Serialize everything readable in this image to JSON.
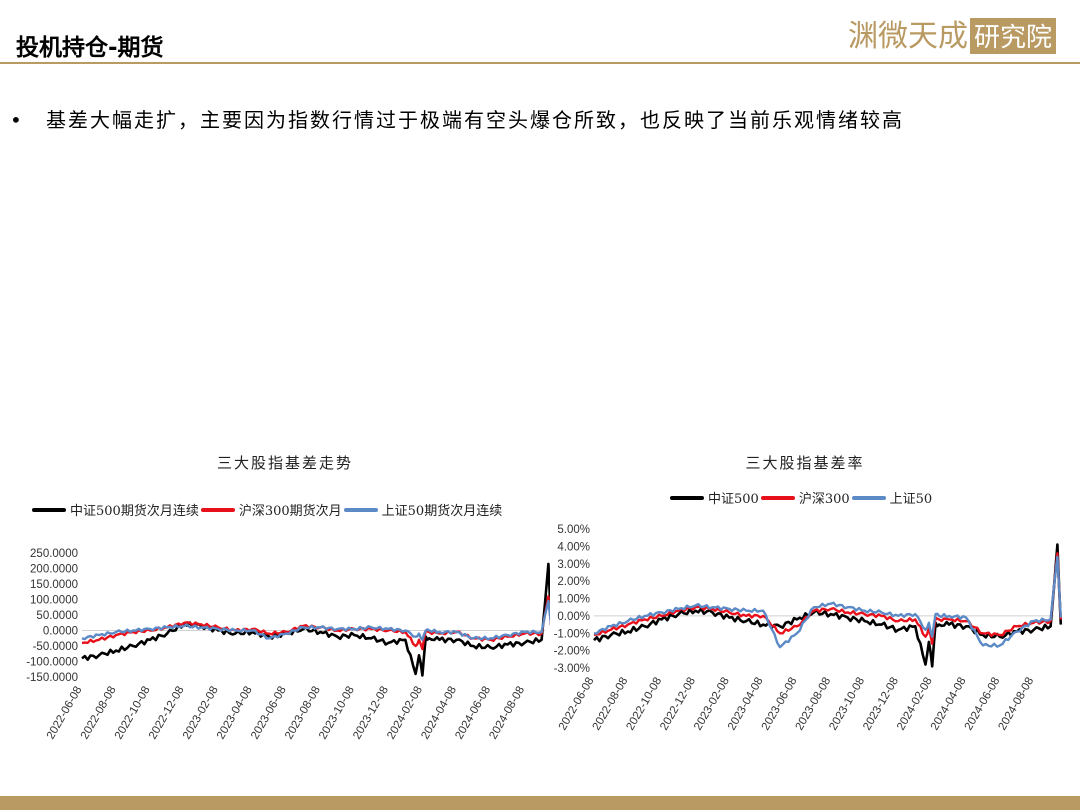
{
  "slide": {
    "title": "投机持仓-期货",
    "bullet": "基差大幅走扩，主要因为指数行情过于极端有空头爆仓所致，也反映了当前乐观情绪较高",
    "logo_text": "渊微天成",
    "logo_badge": "研究院"
  },
  "colors": {
    "accent_gold": "#b99a62",
    "zz500": "#000000",
    "hs300": "#e8101a",
    "sz50": "#5b8ac6"
  },
  "chart_data": [
    {
      "type": "line",
      "title": "三大股指基差走势",
      "legend": [
        "中证500期货次月连续",
        "沪深300期货次月",
        "上证50期货次月连续"
      ],
      "ylim": [
        -150,
        250
      ],
      "yticks": [
        "250.0000",
        "200.0000",
        "150.0000",
        "100.0000",
        "50.0000",
        "0.0000",
        "-50.0000",
        "-100.0000",
        "-150.0000"
      ],
      "xticks": [
        "2022-06-08",
        "2022-08-08",
        "2022-10-08",
        "2022-12-08",
        "2023-02-08",
        "2023-04-08",
        "2023-06-08",
        "2023-08-08",
        "2023-10-08",
        "2023-12-08",
        "2024-02-08",
        "2024-04-08",
        "2024-06-08",
        "2024-08-08"
      ],
      "series": [
        {
          "name": "中证500期货次月连续",
          "x": [
            0,
            0.5,
            1,
            1.5,
            2,
            2.5,
            3,
            3.5,
            4,
            4.5,
            5,
            5.5,
            6,
            6.5,
            7,
            7.5,
            8,
            8.5,
            9,
            9.5,
            9.8,
            9.9,
            10,
            10.1,
            10.2,
            10.5,
            11,
            11.5,
            12,
            12.5,
            13,
            13.5,
            13.7,
            13.8
          ],
          "values": [
            -90,
            -80,
            -65,
            -50,
            -30,
            -10,
            20,
            15,
            0,
            -10,
            -5,
            -20,
            -10,
            5,
            -5,
            -20,
            -15,
            -25,
            -40,
            -30,
            -140,
            -80,
            -145,
            -20,
            -25,
            -30,
            -30,
            -50,
            -55,
            -45,
            -40,
            -30,
            215,
            -20
          ]
        },
        {
          "name": "沪深300期货次月",
          "x": [
            0,
            0.5,
            1,
            1.5,
            2,
            2.5,
            3,
            3.5,
            4,
            4.5,
            5,
            5.5,
            6,
            6.5,
            7,
            7.5,
            8,
            8.5,
            9,
            9.5,
            9.8,
            9.9,
            10,
            10.1,
            10.2,
            10.5,
            11,
            11.5,
            12,
            12.5,
            13,
            13.5,
            13.7,
            13.8
          ],
          "values": [
            -40,
            -30,
            -15,
            -5,
            0,
            10,
            25,
            20,
            10,
            0,
            5,
            -10,
            -5,
            15,
            10,
            0,
            5,
            5,
            0,
            -5,
            -50,
            -30,
            -60,
            0,
            -5,
            -10,
            -5,
            -25,
            -30,
            -20,
            -10,
            -10,
            110,
            -5
          ]
        },
        {
          "name": "上证50期货次月连续",
          "x": [
            0,
            0.5,
            1,
            1.5,
            2,
            2.5,
            3,
            3.5,
            4,
            4.5,
            5,
            5.5,
            6,
            6.5,
            7,
            7.5,
            8,
            8.5,
            9,
            9.5,
            9.8,
            9.9,
            10,
            10.1,
            10.2,
            10.5,
            11,
            11.5,
            12,
            12.5,
            13,
            13.5,
            13.7,
            13.8
          ],
          "values": [
            -25,
            -15,
            -5,
            0,
            5,
            10,
            15,
            10,
            5,
            0,
            0,
            -25,
            -10,
            10,
            10,
            5,
            5,
            10,
            5,
            0,
            -20,
            -10,
            -30,
            0,
            0,
            -5,
            -5,
            -25,
            -25,
            -15,
            -5,
            -5,
            95,
            0
          ]
        }
      ]
    },
    {
      "type": "line",
      "title": "三大股指基差率",
      "legend": [
        "中证500",
        "沪深300",
        "上证50"
      ],
      "ylim": [
        -3,
        5
      ],
      "yticks": [
        "5.00%",
        "4.00%",
        "3.00%",
        "2.00%",
        "1.00%",
        "0.00%",
        "-1.00%",
        "-2.00%",
        "-3.00%"
      ],
      "xticks": [
        "2022-06-08",
        "2022-08-08",
        "2022-10-08",
        "2022-12-08",
        "2023-02-08",
        "2023-04-08",
        "2023-06-08",
        "2023-08-08",
        "2023-10-08",
        "2023-12-08",
        "2024-02-08",
        "2024-04-08",
        "2024-06-08",
        "2024-08-08"
      ],
      "series": [
        {
          "name": "中证500",
          "x": [
            0,
            0.5,
            1,
            1.5,
            2,
            2.5,
            3,
            3.5,
            4,
            4.5,
            5,
            5.5,
            6,
            6.5,
            7,
            7.5,
            8,
            8.5,
            9,
            9.5,
            9.8,
            9.9,
            10,
            10.1,
            10.2,
            10.5,
            11,
            11.5,
            12,
            12.5,
            13,
            13.5,
            13.7,
            13.8
          ],
          "values": [
            -1.4,
            -1.1,
            -0.9,
            -0.6,
            -0.2,
            0.1,
            0.3,
            0.2,
            -0.1,
            -0.3,
            -0.5,
            -0.6,
            -0.2,
            0.2,
            0.1,
            -0.1,
            -0.3,
            -0.5,
            -0.8,
            -0.6,
            -2.8,
            -1.5,
            -2.9,
            -0.4,
            -0.5,
            -0.5,
            -0.6,
            -1.1,
            -1.2,
            -0.9,
            -0.8,
            -0.6,
            4.1,
            -0.5
          ]
        },
        {
          "name": "沪深300",
          "x": [
            0,
            0.5,
            1,
            1.5,
            2,
            2.5,
            3,
            3.5,
            4,
            4.5,
            5,
            5.5,
            6,
            6.5,
            7,
            7.5,
            8,
            8.5,
            9,
            9.5,
            9.8,
            9.9,
            10,
            10.1,
            10.2,
            10.5,
            11,
            11.5,
            12,
            12.5,
            13,
            13.5,
            13.7,
            13.8
          ],
          "values": [
            -1.1,
            -0.8,
            -0.5,
            -0.2,
            0.0,
            0.3,
            0.5,
            0.4,
            0.2,
            0.0,
            0.0,
            -1.0,
            -0.6,
            0.3,
            0.4,
            0.2,
            0.1,
            0.0,
            -0.3,
            -0.2,
            -1.2,
            -0.7,
            -1.6,
            -0.1,
            -0.2,
            -0.2,
            -0.3,
            -1.0,
            -1.1,
            -0.6,
            -0.4,
            -0.3,
            3.6,
            -0.2
          ]
        },
        {
          "name": "上证50",
          "x": [
            0,
            0.5,
            1,
            1.5,
            2,
            2.5,
            3,
            3.5,
            4,
            4.5,
            5,
            5.5,
            6,
            6.5,
            7,
            7.5,
            8,
            8.5,
            9,
            9.5,
            9.8,
            9.9,
            10,
            10.1,
            10.2,
            10.5,
            11,
            11.5,
            12,
            12.5,
            13,
            13.5,
            13.7,
            13.8
          ],
          "values": [
            -1.0,
            -0.6,
            -0.3,
            0.0,
            0.2,
            0.4,
            0.6,
            0.5,
            0.4,
            0.3,
            0.3,
            -1.8,
            -1.0,
            0.5,
            0.7,
            0.5,
            0.3,
            0.2,
            0.0,
            0.1,
            -0.8,
            -0.4,
            -1.2,
            0.1,
            0.0,
            0.0,
            -0.1,
            -1.7,
            -1.7,
            -0.9,
            -0.3,
            -0.2,
            3.4,
            -0.1
          ]
        }
      ]
    }
  ]
}
